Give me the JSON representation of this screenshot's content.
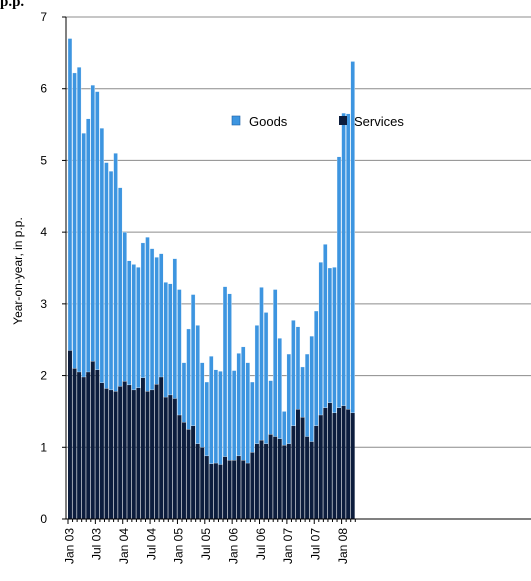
{
  "corner_label": "p.p.",
  "colors": {
    "goods": "#3d95e0",
    "goods_edge": "#ffffff",
    "services": "#0c1d3d",
    "grid": "#8c8c8c",
    "axis": "#000000"
  },
  "chart_data": {
    "type": "bar",
    "stacked": true,
    "ylabel": "Year-on-year, in p.p.",
    "xlabel": "",
    "ylim": [
      0,
      7
    ],
    "yticks": [
      0,
      1,
      2,
      3,
      4,
      5,
      6,
      7
    ],
    "grid": true,
    "legend": "top",
    "xtick_labels": [
      "Jan 03",
      "Jul 03",
      "Jan 04",
      "Jul 04",
      "Jan 05",
      "Jul 05",
      "Jan 06",
      "Jul 06",
      "Jan 07",
      "Jul 07",
      "Jan 08"
    ],
    "xtick_every": 6,
    "series": [
      {
        "name": "Services",
        "values": [
          2.35,
          2.1,
          2.05,
          1.98,
          2.05,
          2.2,
          2.08,
          1.9,
          1.82,
          1.8,
          1.78,
          1.85,
          1.92,
          1.87,
          1.8,
          1.83,
          1.97,
          1.78,
          1.8,
          1.88,
          1.98,
          1.7,
          1.73,
          1.68,
          1.45,
          1.35,
          1.25,
          1.3,
          1.05,
          1.0,
          0.88,
          0.77,
          0.78,
          0.76,
          0.87,
          0.82,
          0.82,
          0.88,
          0.82,
          0.78,
          0.93,
          1.05,
          1.1,
          1.05,
          1.18,
          1.15,
          1.12,
          1.03,
          1.05,
          1.3,
          1.53,
          1.42,
          1.15,
          1.08,
          1.3,
          1.45,
          1.55,
          1.62,
          1.48,
          1.55,
          1.58,
          1.53,
          1.48
        ],
        "color": "#0c1d3d"
      },
      {
        "name": "Goods",
        "values": [
          4.35,
          4.12,
          4.25,
          3.4,
          3.53,
          3.85,
          3.88,
          3.55,
          3.15,
          3.05,
          3.32,
          2.77,
          2.08,
          1.73,
          1.75,
          1.68,
          1.88,
          2.15,
          1.97,
          1.77,
          1.72,
          1.6,
          1.55,
          1.95,
          1.75,
          0.83,
          1.4,
          1.83,
          1.65,
          1.18,
          1.03,
          1.5,
          1.3,
          1.3,
          2.37,
          2.32,
          1.25,
          1.43,
          1.58,
          1.4,
          0.98,
          1.65,
          2.13,
          1.83,
          0.75,
          2.05,
          1.4,
          0.47,
          1.25,
          1.47,
          1.15,
          0.7,
          1.15,
          1.47,
          1.6,
          2.13,
          2.28,
          1.88,
          2.03,
          3.5,
          4.08,
          4.12,
          4.9
        ],
        "color": "#3d95e0"
      }
    ]
  }
}
